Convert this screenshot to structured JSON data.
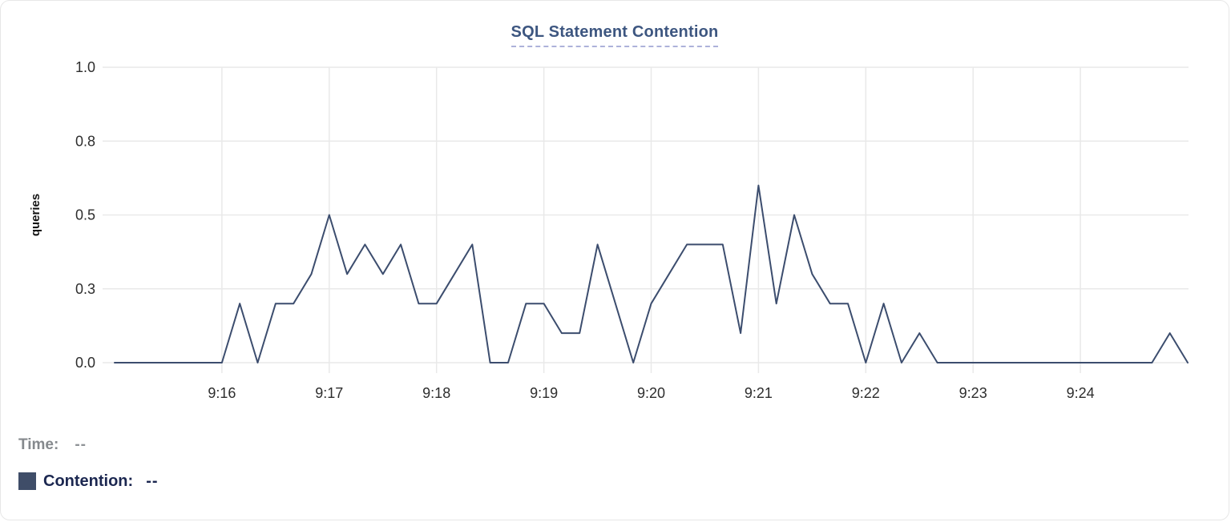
{
  "title": "SQL Statement Contention",
  "readout": {
    "time_label": "Time:",
    "time_value": "--",
    "series_label": "Contention:",
    "series_value": "--"
  },
  "colors": {
    "line": "#3c4d6e",
    "swatch": "#3f4d68",
    "title": "#3d5680",
    "title_underline": "#adb2da",
    "grid": "#e9e9e9",
    "tick_text": "#2d2d2d",
    "time_label": "#85898d",
    "series_label": "#1b2750"
  },
  "chart_data": {
    "type": "line",
    "title": "SQL Statement Contention",
    "xlabel": "",
    "ylabel": "queries",
    "ylim": [
      0,
      1.0
    ],
    "grid": true,
    "legend_position": "below-left",
    "y_ticks": [
      {
        "label": "1.0",
        "value": 1.0
      },
      {
        "label": "0.8",
        "value": 0.75
      },
      {
        "label": "0.5",
        "value": 0.5
      },
      {
        "label": "0.3",
        "value": 0.25
      },
      {
        "label": "0.0",
        "value": 0.0
      }
    ],
    "x_ticks": [
      {
        "label": "9:16"
      },
      {
        "label": "9:17"
      },
      {
        "label": "9:18"
      },
      {
        "label": "9:19"
      },
      {
        "label": "9:20"
      },
      {
        "label": "9:21"
      },
      {
        "label": "9:22"
      },
      {
        "label": "9:23"
      },
      {
        "label": "9:24"
      }
    ],
    "series": [
      {
        "name": "Contention",
        "x": [
          "9:15:00",
          "9:15:10",
          "9:15:20",
          "9:15:30",
          "9:15:40",
          "9:15:50",
          "9:16:00",
          "9:16:10",
          "9:16:20",
          "9:16:30",
          "9:16:40",
          "9:16:50",
          "9:17:00",
          "9:17:10",
          "9:17:20",
          "9:17:30",
          "9:17:40",
          "9:17:50",
          "9:18:00",
          "9:18:10",
          "9:18:20",
          "9:18:30",
          "9:18:40",
          "9:18:50",
          "9:19:00",
          "9:19:10",
          "9:19:20",
          "9:19:30",
          "9:19:40",
          "9:19:50",
          "9:20:00",
          "9:20:10",
          "9:20:20",
          "9:20:30",
          "9:20:40",
          "9:20:50",
          "9:21:00",
          "9:21:10",
          "9:21:20",
          "9:21:30",
          "9:21:40",
          "9:21:50",
          "9:22:00",
          "9:22:10",
          "9:22:20",
          "9:22:30",
          "9:22:40",
          "9:22:50",
          "9:23:00",
          "9:23:10",
          "9:23:20",
          "9:23:30",
          "9:23:40",
          "9:23:50",
          "9:24:00",
          "9:24:10",
          "9:24:20",
          "9:24:30",
          "9:24:40",
          "9:24:50",
          "9:25:00"
        ],
        "values": [
          0,
          0,
          0,
          0,
          0,
          0,
          0,
          0.2,
          0,
          0.2,
          0.2,
          0.3,
          0.5,
          0.3,
          0.4,
          0.3,
          0.4,
          0.2,
          0.2,
          0.3,
          0.4,
          0,
          0,
          0.2,
          0.2,
          0.1,
          0.1,
          0.4,
          0.2,
          0,
          0.2,
          0.3,
          0.4,
          0.4,
          0.4,
          0.1,
          0.6,
          0.2,
          0.5,
          0.3,
          0.2,
          0.2,
          0,
          0.2,
          0,
          0.1,
          0,
          0,
          0,
          0,
          0,
          0,
          0,
          0,
          0,
          0,
          0,
          0,
          0,
          0.1,
          0
        ]
      }
    ]
  }
}
